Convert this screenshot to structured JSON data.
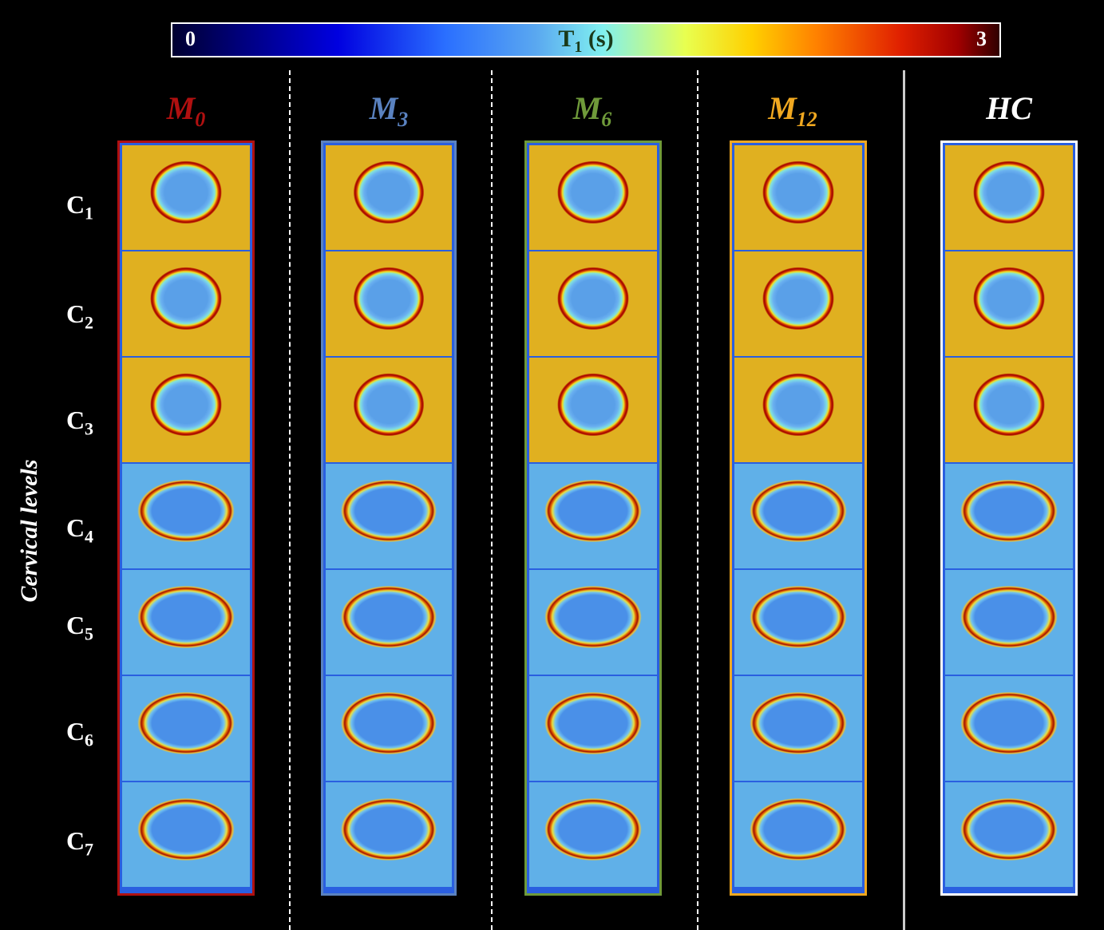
{
  "colorbar": {
    "min_label": "0",
    "max_label": "3",
    "title_main": "T",
    "title_sub": "1",
    "title_unit": " (s)"
  },
  "columns": [
    {
      "prefix": "M",
      "sub": "0",
      "color": "#b01010"
    },
    {
      "prefix": "M",
      "sub": "3",
      "color": "#5a82c0"
    },
    {
      "prefix": "M",
      "sub": "6",
      "color": "#6f9a3a"
    },
    {
      "prefix": "M",
      "sub": "12",
      "color": "#f0a820"
    },
    {
      "prefix": "HC",
      "sub": "",
      "color": "#ffffff"
    }
  ],
  "row_axis_label": "Cervical levels",
  "rows": [
    {
      "prefix": "C",
      "sub": "1"
    },
    {
      "prefix": "C",
      "sub": "2"
    },
    {
      "prefix": "C",
      "sub": "3"
    },
    {
      "prefix": "C",
      "sub": "4"
    },
    {
      "prefix": "C",
      "sub": "5"
    },
    {
      "prefix": "C",
      "sub": "6"
    },
    {
      "prefix": "C",
      "sub": "7"
    }
  ]
}
